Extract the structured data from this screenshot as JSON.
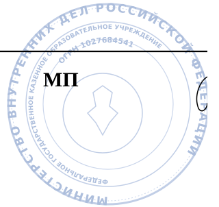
{
  "stamp": {
    "outer_text": "МИНИСТЕРСТВО ВНУТРЕННИХ ДЕЛ РОССИЙСКОЙ ФЕДЕРАЦИИ",
    "middle_text": "ФЕДЕРАЛЬНОЕ ГОСУДАРСТВЕННОЕ КАЗЕННОЕ ОБРАЗОВАТЕЛЬНОЕ УЧРЕЖДЕНИЕ",
    "inner_text": "ОГРН 1027684541"
  },
  "label": "МП"
}
